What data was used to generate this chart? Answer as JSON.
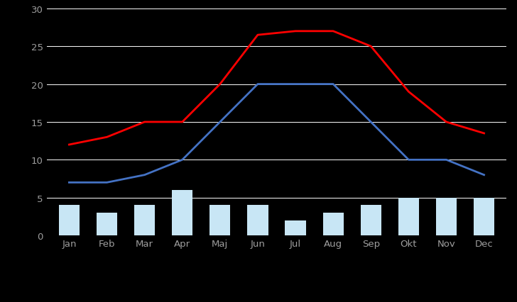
{
  "months": [
    "Jan",
    "Feb",
    "Mar",
    "Apr",
    "Maj",
    "Jun",
    "Jul",
    "Aug",
    "Sep",
    "Okt",
    "Nov",
    "Dec"
  ],
  "rain_days": [
    4,
    3,
    4,
    6,
    4,
    4,
    2,
    3,
    4,
    5,
    5,
    5
  ],
  "min_temp": [
    7,
    7,
    8,
    10,
    15,
    20,
    20,
    20,
    15,
    10,
    10,
    8
  ],
  "max_temp": [
    12,
    13,
    15,
    15,
    20,
    26.5,
    27,
    27,
    25,
    19,
    15,
    13.5
  ],
  "bar_color": "#c8e6f5",
  "min_line_color": "#4472c4",
  "max_line_color": "#ff0000",
  "bg_color": "#000000",
  "grid_color": "#ffffff",
  "text_color": "#ffffff",
  "tick_label_color": "#9e9e9e",
  "ylim": [
    0,
    30
  ],
  "yticks": [
    0,
    5,
    10,
    15,
    20,
    25,
    30
  ]
}
